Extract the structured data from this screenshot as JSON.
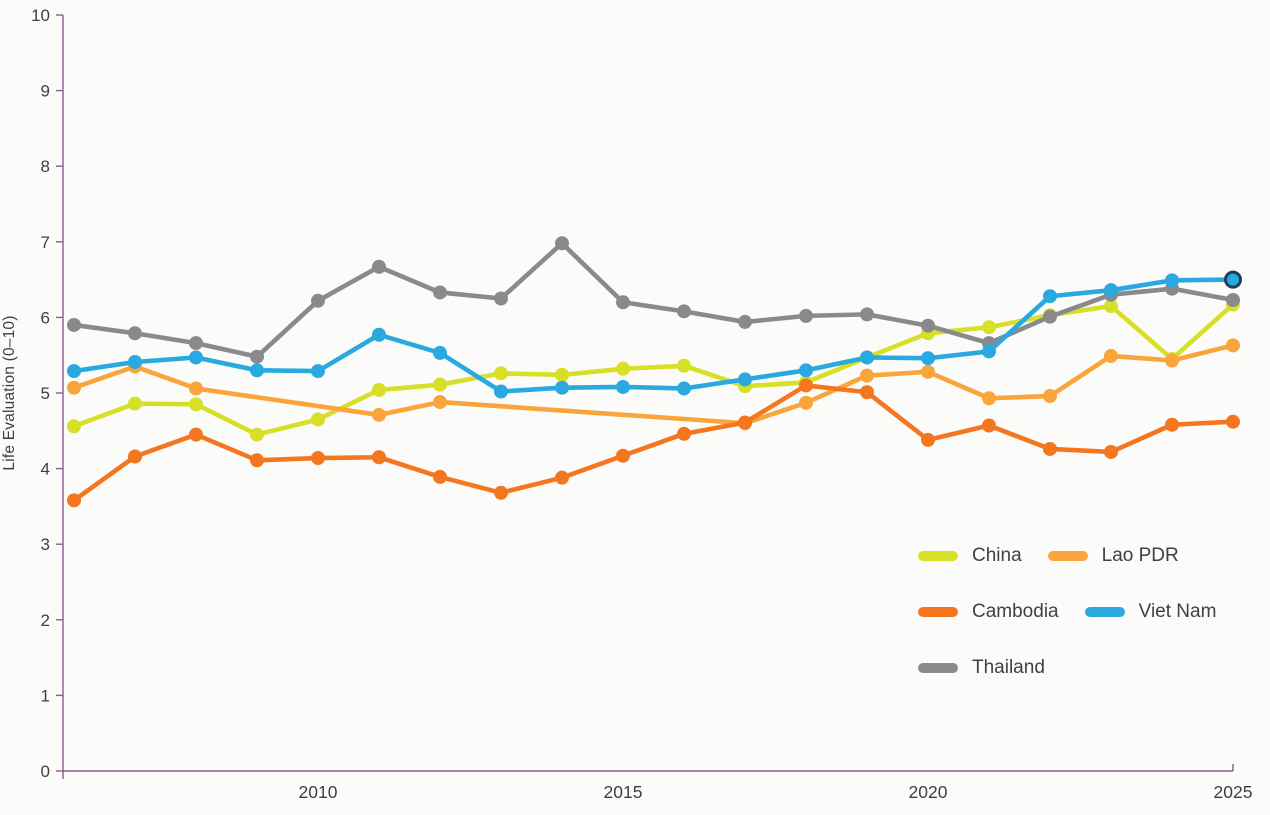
{
  "chart_data": {
    "type": "line",
    "title": "",
    "ylabel": "Life Evaluation (0–10)",
    "x": [
      2006,
      2007,
      2008,
      2009,
      2010,
      2011,
      2012,
      2013,
      2014,
      2015,
      2016,
      2017,
      2018,
      2019,
      2020,
      2021,
      2022,
      2023,
      2024,
      2025
    ],
    "x_ticks": [
      {
        "value": 2010,
        "label": "2010"
      },
      {
        "value": 2015,
        "label": "2015"
      },
      {
        "value": 2020,
        "label": "2020"
      },
      {
        "value": 2025,
        "label": "2025"
      }
    ],
    "ylim": [
      0,
      10
    ],
    "y_ticks": [
      0,
      1,
      2,
      3,
      4,
      5,
      6,
      7,
      8,
      9,
      10
    ],
    "grid": false,
    "legend_position": "center-right",
    "series": [
      {
        "name": "China",
        "color": "#d7df26",
        "values": [
          4.56,
          4.86,
          4.85,
          4.45,
          4.65,
          5.04,
          5.11,
          5.26,
          5.24,
          5.32,
          5.36,
          5.09,
          5.14,
          5.47,
          5.79,
          5.87,
          6.03,
          6.15,
          5.45,
          6.17
        ]
      },
      {
        "name": "Lao PDR",
        "color": "#f9a53c",
        "values": [
          5.07,
          5.35,
          5.06,
          null,
          null,
          4.71,
          4.88,
          null,
          null,
          null,
          null,
          4.6,
          4.87,
          5.23,
          5.28,
          4.93,
          4.96,
          5.49,
          5.43,
          5.63
        ]
      },
      {
        "name": "Cambodia",
        "color": "#f4761f",
        "values": [
          3.58,
          4.16,
          4.45,
          4.11,
          4.14,
          4.15,
          3.89,
          3.68,
          3.88,
          4.17,
          4.46,
          4.61,
          5.1,
          5.01,
          4.38,
          4.57,
          4.26,
          4.22,
          4.58,
          4.62
        ]
      },
      {
        "name": "Thailand",
        "color": "#8a8a8d",
        "values": [
          5.9,
          5.79,
          5.66,
          5.48,
          6.22,
          6.67,
          6.33,
          6.25,
          6.98,
          6.2,
          6.08,
          5.94,
          6.02,
          6.04,
          5.89,
          5.66,
          6.01,
          6.3,
          6.38,
          6.23
        ]
      },
      {
        "name": "Viet Nam",
        "color": "#29a9e0",
        "values": [
          5.29,
          5.41,
          5.47,
          5.3,
          5.29,
          5.77,
          5.53,
          5.02,
          5.07,
          5.08,
          5.06,
          5.18,
          5.3,
          5.47,
          5.46,
          5.55,
          6.28,
          6.36,
          6.49,
          6.5
        ]
      }
    ],
    "legend_rows": [
      [
        "China",
        "Lao PDR"
      ],
      [
        "Cambodia",
        "Viet Nam"
      ],
      [
        "Thailand"
      ]
    ],
    "highlight_point": {
      "series": "Viet Nam",
      "x": 2025,
      "ring_color": "#1e3f5c"
    }
  },
  "colors": {
    "axis": "#8d5a8f",
    "text": "#3f3e41",
    "background": "#fbfbf9"
  }
}
